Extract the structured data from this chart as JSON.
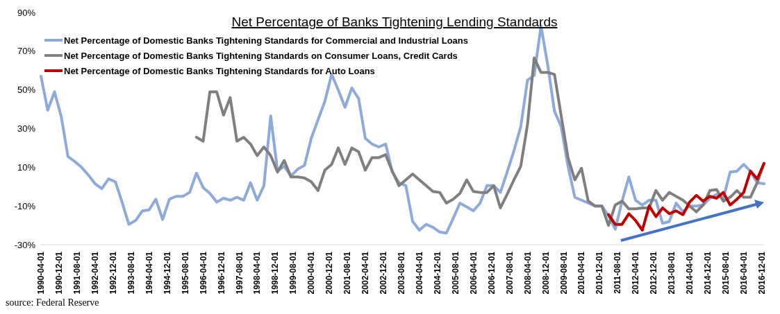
{
  "chart_data": {
    "type": "line",
    "title": "Net Percentage of Banks Tightening Lending Standards",
    "annotations": [
      "source: Federal Reserve"
    ],
    "x": [
      "1990-04-01",
      "1990-07-01",
      "1990-10-01",
      "1991-01-01",
      "1991-04-01",
      "1991-07-01",
      "1991-10-01",
      "1992-01-01",
      "1992-04-01",
      "1992-07-01",
      "1992-10-01",
      "1993-01-01",
      "1993-04-01",
      "1993-07-01",
      "1993-10-01",
      "1994-01-01",
      "1994-04-01",
      "1994-07-01",
      "1994-10-01",
      "1995-01-01",
      "1995-04-01",
      "1995-07-01",
      "1995-10-01",
      "1996-01-01",
      "1996-04-01",
      "1996-07-01",
      "1996-10-01",
      "1997-01-01",
      "1997-04-01",
      "1997-07-01",
      "1997-10-01",
      "1998-01-01",
      "1998-04-01",
      "1998-07-01",
      "1998-10-01",
      "1999-01-01",
      "1999-04-01",
      "1999-07-01",
      "1999-10-01",
      "2000-01-01",
      "2000-04-01",
      "2000-07-01",
      "2000-10-01",
      "2001-01-01",
      "2001-04-01",
      "2001-07-01",
      "2001-10-01",
      "2002-01-01",
      "2002-04-01",
      "2002-07-01",
      "2002-10-01",
      "2003-01-01",
      "2003-04-01",
      "2003-07-01",
      "2003-10-01",
      "2004-01-01",
      "2004-04-01",
      "2004-07-01",
      "2004-10-01",
      "2005-01-01",
      "2005-04-01",
      "2005-07-01",
      "2005-10-01",
      "2006-01-01",
      "2006-04-01",
      "2006-07-01",
      "2006-10-01",
      "2007-01-01",
      "2007-04-01",
      "2007-07-01",
      "2007-10-01",
      "2008-01-01",
      "2008-04-01",
      "2008-07-01",
      "2008-10-01",
      "2009-01-01",
      "2009-04-01",
      "2009-07-01",
      "2009-10-01",
      "2010-01-01",
      "2010-04-01",
      "2010-07-01",
      "2010-10-01",
      "2011-01-01",
      "2011-04-01",
      "2011-07-01",
      "2011-10-01",
      "2012-01-01",
      "2012-04-01",
      "2012-07-01",
      "2012-10-01",
      "2013-01-01",
      "2013-04-01",
      "2013-07-01",
      "2013-10-01",
      "2014-01-01",
      "2014-04-01",
      "2014-07-01",
      "2014-10-01",
      "2015-01-01",
      "2015-04-01",
      "2015-07-01",
      "2015-10-01",
      "2016-01-01",
      "2016-04-01",
      "2016-07-01",
      "2016-10-01",
      "2017-01-01"
    ],
    "series": [
      {
        "name": "Net Percentage of Domestic Banks Tightening Standards for Commercial and Industrial Loans",
        "color": "#8eaadb",
        "values": [
          57,
          39.5,
          49,
          36,
          15.5,
          13,
          10,
          6,
          1.5,
          -1,
          4,
          2.5,
          -8,
          -19.5,
          -17.5,
          -12.5,
          -12,
          -6.5,
          -17,
          -6.5,
          -5,
          -5,
          -3,
          7,
          -0.5,
          -3.5,
          -8,
          -6,
          -7,
          -5.5,
          -7,
          2,
          -7,
          0.5,
          36.5,
          8,
          10.5,
          5.5,
          9,
          11,
          25,
          34.5,
          44,
          58,
          50,
          41,
          51,
          45.5,
          25,
          22,
          20.5,
          22,
          7.5,
          2,
          0.5,
          -18,
          -22.5,
          -19.5,
          -21,
          -23.5,
          -24,
          -16.5,
          -8.5,
          -10.5,
          -12.5,
          -8.5,
          0.5,
          0.5,
          -3,
          7.5,
          18.5,
          31,
          55,
          57.5,
          83,
          62.5,
          39,
          31,
          10.5,
          -5.5,
          -7,
          -8.5,
          -10,
          -10,
          -15,
          -22,
          -7.5,
          5,
          -7,
          -9.5,
          -7,
          -7,
          -19,
          -18,
          -8.5,
          -13,
          -10,
          -10,
          -9.5,
          -6,
          -4,
          -6,
          7.5,
          8,
          11.5,
          8,
          2,
          1.5
        ]
      },
      {
        "name": "Net Percentage of Domestic Banks Tightening Standards on Consumer Loans, Credit Cards",
        "color": "#7f7f7f",
        "values": [
          null,
          null,
          null,
          null,
          null,
          null,
          null,
          null,
          null,
          null,
          null,
          null,
          null,
          null,
          null,
          null,
          null,
          null,
          null,
          null,
          null,
          null,
          null,
          25.5,
          23.5,
          49,
          49,
          37,
          46,
          23.5,
          25.5,
          22,
          16,
          20.5,
          16,
          7.5,
          13.5,
          5,
          5,
          4.5,
          2.5,
          -2,
          8.5,
          11.5,
          20,
          11.5,
          20,
          18,
          8.5,
          15,
          15,
          16.5,
          8,
          0.5,
          3.5,
          6.5,
          3.5,
          0.5,
          -2.5,
          -3,
          -8.5,
          -6.5,
          -3.5,
          3.5,
          -2.5,
          -3,
          -3,
          0.5,
          -11,
          -4,
          3.5,
          10.5,
          32,
          66.5,
          59,
          59,
          58,
          36.5,
          15,
          3.5,
          9.5,
          -7.5,
          -10,
          -10,
          -20,
          -9.5,
          -7.5,
          -11.5,
          -11.5,
          -11,
          -11,
          -2,
          -7,
          -3,
          -5,
          -7,
          -10,
          -13,
          -9.5,
          -2,
          -1.5,
          -7.5,
          -5.5,
          -2,
          -5.5,
          -5.5,
          2,
          12
        ]
      },
      {
        "name": "Net Percentage of Domestic Banks Tightening Standards for Auto Loans",
        "color": "#c00000",
        "values": [
          null,
          null,
          null,
          null,
          null,
          null,
          null,
          null,
          null,
          null,
          null,
          null,
          null,
          null,
          null,
          null,
          null,
          null,
          null,
          null,
          null,
          null,
          null,
          null,
          null,
          null,
          null,
          null,
          null,
          null,
          null,
          null,
          null,
          null,
          null,
          null,
          null,
          null,
          null,
          null,
          null,
          null,
          null,
          null,
          null,
          null,
          null,
          null,
          null,
          null,
          null,
          null,
          null,
          null,
          null,
          null,
          null,
          null,
          null,
          null,
          null,
          null,
          null,
          null,
          null,
          null,
          null,
          null,
          null,
          null,
          null,
          null,
          null,
          null,
          null,
          null,
          null,
          null,
          null,
          null,
          null,
          null,
          null,
          null,
          -14.5,
          -19.5,
          -19.5,
          -14,
          -17.5,
          -22.5,
          -10,
          -15.5,
          -11,
          -14,
          -12.5,
          -14.5,
          -8,
          -4.5,
          -7.5,
          -5,
          -6,
          -3,
          -9.5,
          -6.5,
          -3,
          8,
          4,
          12
        ]
      }
    ],
    "xlim": [
      "1990-04-01",
      "2017-01-01"
    ],
    "xticks": [
      "1990-04-01",
      "1990-12-01",
      "1991-08-01",
      "1992-04-01",
      "1992-12-01",
      "1993-08-01",
      "1994-04-01",
      "1994-12-01",
      "1995-08-01",
      "1996-04-01",
      "1996-12-01",
      "1997-08-01",
      "1998-04-01",
      "1998-12-01",
      "1999-08-01",
      "2000-04-01",
      "2000-12-01",
      "2001-08-01",
      "2002-04-01",
      "2002-12-01",
      "2003-08-01",
      "2004-04-01",
      "2004-12-01",
      "2005-08-01",
      "2006-04-01",
      "2006-12-01",
      "2007-08-01",
      "2008-04-01",
      "2008-12-01",
      "2009-08-01",
      "2010-04-01",
      "2010-12-01",
      "2011-08-01",
      "2012-04-01",
      "2012-12-01",
      "2013-08-01",
      "2014-04-01",
      "2014-12-01",
      "2015-08-01",
      "2016-04-01",
      "2016-12-01"
    ],
    "ylim": [
      -30,
      90
    ],
    "yticks": [
      {
        "value": -30,
        "label": "-30%"
      },
      {
        "value": -10,
        "label": "-10%"
      },
      {
        "value": 10,
        "label": "10%"
      },
      {
        "value": 30,
        "label": "30%"
      },
      {
        "value": 50,
        "label": "50%"
      },
      {
        "value": 70,
        "label": "70%"
      },
      {
        "value": 90,
        "label": "90%"
      }
    ],
    "legend": "top left",
    "line_style": "solid"
  }
}
